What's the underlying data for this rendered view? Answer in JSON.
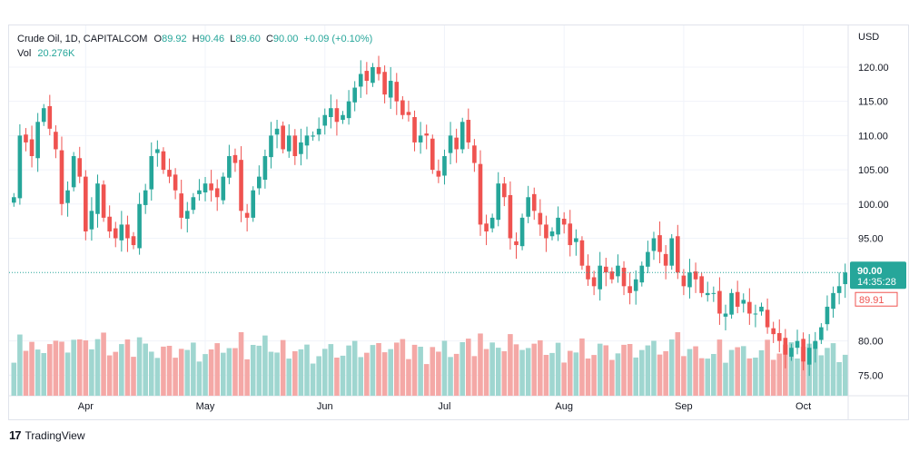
{
  "legend": {
    "symbol": "Crude Oil, 1D, CAPITALCOM",
    "o_label": "O",
    "o_value": "89.92",
    "h_label": "H",
    "h_value": "90.46",
    "l_label": "L",
    "l_value": "89.60",
    "c_label": "C",
    "c_value": "90.00",
    "change": "+0.09 (+0.10%)",
    "vol_label": "Vol",
    "vol_value": "20.276K"
  },
  "branding": {
    "name": "TradingView",
    "mark": "17"
  },
  "colors": {
    "up": "#26a69a",
    "down": "#ef5350",
    "up_vol": "#9fd6d0",
    "down_vol": "#f4a8a6",
    "grid": "#f0f3fa",
    "text": "#131722"
  },
  "chart_data": {
    "type": "candlestick",
    "currency": "USD",
    "y_ticks": [
      "120.00",
      "115.00",
      "110.00",
      "105.00",
      "100.00",
      "95.00",
      "80.00",
      "75.00"
    ],
    "ylim": [
      72,
      124.5
    ],
    "x_labels": [
      "Apr",
      "May",
      "Jun",
      "Jul",
      "Aug",
      "Sep",
      "Oct"
    ],
    "month_starts": [
      12,
      32,
      52,
      72,
      92,
      112,
      132
    ],
    "last_price": "90.00",
    "countdown": "14:35:28",
    "prev_price": "89.91",
    "closes": [
      101,
      110,
      109,
      107,
      112,
      114,
      111,
      108,
      100,
      102,
      107,
      104,
      96,
      99,
      103,
      98,
      96,
      95,
      97,
      95,
      94,
      100,
      102,
      107,
      108,
      105,
      104,
      102,
      98,
      99,
      101,
      102,
      103,
      102,
      101,
      104,
      107,
      106,
      99,
      98,
      102,
      104,
      107,
      110,
      111,
      108,
      110,
      107,
      109,
      110,
      110,
      111,
      113,
      114,
      112,
      113,
      115,
      117,
      119,
      118,
      120,
      119,
      116,
      118,
      115,
      113,
      113,
      109,
      110,
      110,
      105,
      104,
      107,
      110,
      108,
      112,
      109,
      106,
      97,
      96,
      98,
      103,
      101,
      95,
      94,
      98,
      101,
      99,
      97,
      95,
      96,
      98,
      97,
      94,
      95,
      91,
      89,
      88,
      91,
      90,
      89,
      91,
      88,
      87,
      89,
      91,
      93,
      95,
      93,
      91,
      95,
      90,
      88,
      90,
      89,
      87,
      87,
      87,
      84,
      84,
      87,
      85,
      86,
      84,
      84,
      85,
      82,
      81,
      80,
      78,
      79,
      80,
      77,
      79,
      80,
      82,
      85,
      87,
      88,
      90
    ]
  }
}
